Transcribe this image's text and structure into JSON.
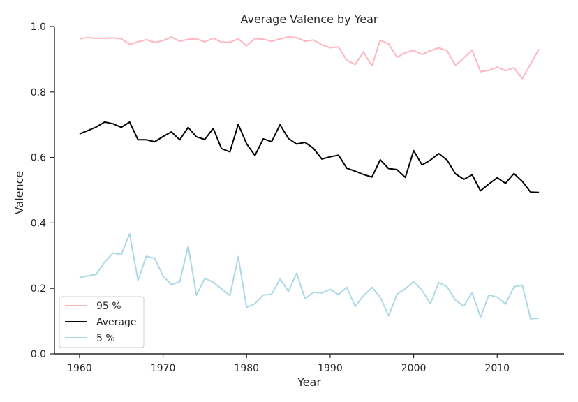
{
  "chart_data": {
    "type": "line",
    "title": "Average Valence by Year",
    "xlabel": "Year",
    "ylabel": "Valence",
    "xlim": [
      1957,
      2018
    ],
    "ylim": [
      0.0,
      1.0
    ],
    "x_ticks": [
      1960,
      1970,
      1980,
      1990,
      2000,
      2010
    ],
    "y_ticks": [
      0.0,
      0.2,
      0.4,
      0.6,
      0.8,
      1.0
    ],
    "y_tick_labels": [
      "0.0",
      "0.2",
      "0.4",
      "0.6",
      "0.8",
      "1.0"
    ],
    "legend_position": "bottom-left",
    "grid": false,
    "x": [
      1960,
      1961,
      1962,
      1963,
      1964,
      1965,
      1966,
      1967,
      1968,
      1969,
      1970,
      1971,
      1972,
      1973,
      1974,
      1975,
      1976,
      1977,
      1978,
      1979,
      1980,
      1981,
      1982,
      1983,
      1984,
      1985,
      1986,
      1987,
      1988,
      1989,
      1990,
      1991,
      1992,
      1993,
      1994,
      1995,
      1996,
      1997,
      1998,
      1999,
      2000,
      2001,
      2002,
      2003,
      2004,
      2005,
      2006,
      2007,
      2008,
      2009,
      2010,
      2011,
      2012,
      2013,
      2014,
      2015
    ],
    "series": [
      {
        "name": "95 %",
        "color": "#ffb6c1",
        "values": [
          0.962,
          0.966,
          0.964,
          0.964,
          0.965,
          0.963,
          0.945,
          0.953,
          0.96,
          0.951,
          0.957,
          0.968,
          0.955,
          0.961,
          0.962,
          0.953,
          0.964,
          0.952,
          0.952,
          0.962,
          0.941,
          0.963,
          0.961,
          0.955,
          0.962,
          0.968,
          0.966,
          0.955,
          0.959,
          0.944,
          0.935,
          0.938,
          0.897,
          0.884,
          0.922,
          0.88,
          0.958,
          0.947,
          0.906,
          0.92,
          0.927,
          0.915,
          0.926,
          0.935,
          0.926,
          0.881,
          0.904,
          0.928,
          0.862,
          0.866,
          0.876,
          0.865,
          0.874,
          0.841,
          0.886,
          0.931
        ]
      },
      {
        "name": "Average",
        "color": "#000000",
        "values": [
          0.672,
          0.682,
          0.693,
          0.708,
          0.703,
          0.692,
          0.708,
          0.654,
          0.654,
          0.648,
          0.664,
          0.678,
          0.654,
          0.692,
          0.663,
          0.655,
          0.689,
          0.627,
          0.617,
          0.701,
          0.642,
          0.606,
          0.657,
          0.648,
          0.7,
          0.658,
          0.641,
          0.646,
          0.628,
          0.595,
          0.602,
          0.607,
          0.567,
          0.558,
          0.548,
          0.54,
          0.593,
          0.566,
          0.563,
          0.539,
          0.621,
          0.577,
          0.592,
          0.612,
          0.592,
          0.55,
          0.533,
          0.547,
          0.498,
          0.519,
          0.538,
          0.521,
          0.551,
          0.527,
          0.494,
          0.493
        ]
      },
      {
        "name": "5 %",
        "color": "#add8e6",
        "values": [
          0.233,
          0.238,
          0.243,
          0.28,
          0.308,
          0.303,
          0.367,
          0.224,
          0.298,
          0.292,
          0.238,
          0.212,
          0.22,
          0.329,
          0.179,
          0.231,
          0.219,
          0.199,
          0.178,
          0.297,
          0.142,
          0.153,
          0.18,
          0.182,
          0.229,
          0.191,
          0.246,
          0.168,
          0.188,
          0.186,
          0.197,
          0.181,
          0.203,
          0.145,
          0.178,
          0.203,
          0.173,
          0.116,
          0.182,
          0.199,
          0.221,
          0.194,
          0.153,
          0.218,
          0.205,
          0.164,
          0.146,
          0.187,
          0.112,
          0.18,
          0.173,
          0.152,
          0.205,
          0.21,
          0.107,
          0.109
        ]
      }
    ]
  }
}
